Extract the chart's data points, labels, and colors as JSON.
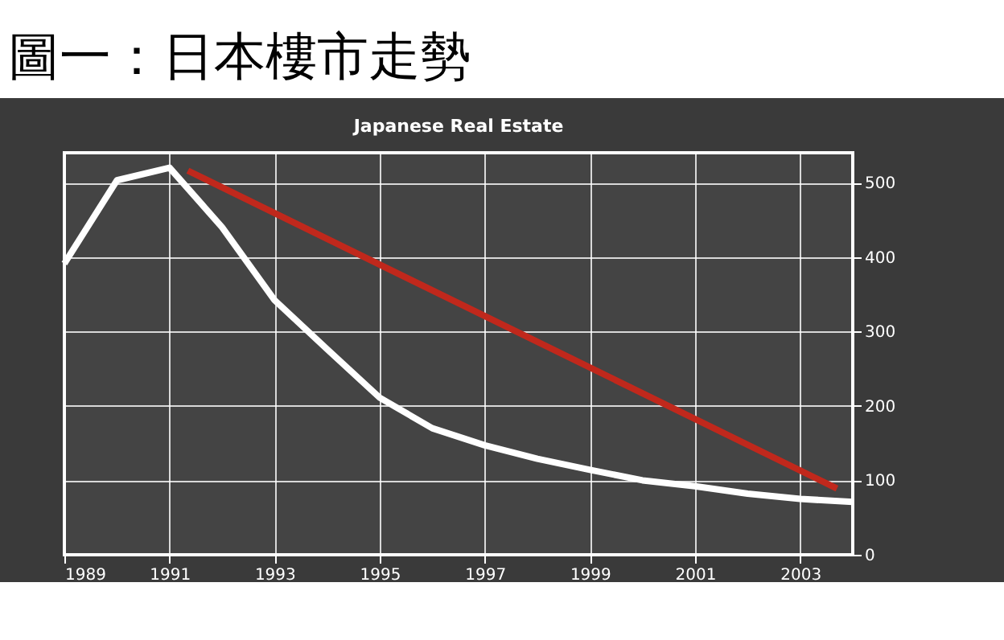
{
  "chart_data": {
    "type": "line",
    "title": "圖一：日本樓市走勢",
    "subtitle": "Japanese Real Estate",
    "series": [
      {
        "color": "#ffffff",
        "x": [
          1989,
          1990,
          1991,
          1992,
          1993,
          1994,
          1995,
          1996,
          1997,
          1998,
          1999,
          2000,
          2001,
          2002,
          2003,
          2004
        ],
        "values": [
          391,
          503,
          520,
          440,
          342,
          276,
          211,
          170,
          147,
          129,
          114,
          100,
          92,
          82,
          75,
          71
        ]
      },
      {
        "color": "#c0281c",
        "x": [
          1991.35,
          2003.7
        ],
        "values": [
          516,
          89
        ]
      }
    ],
    "xlim": [
      1989,
      2004
    ],
    "xticks": [
      1989,
      1991,
      1993,
      1995,
      1997,
      1999,
      2001,
      2003
    ],
    "ylim": [
      0,
      540
    ],
    "yticks": [
      0,
      100,
      200,
      300,
      400,
      500
    ],
    "grid": true,
    "marker": "none",
    "line_style": "solid"
  }
}
